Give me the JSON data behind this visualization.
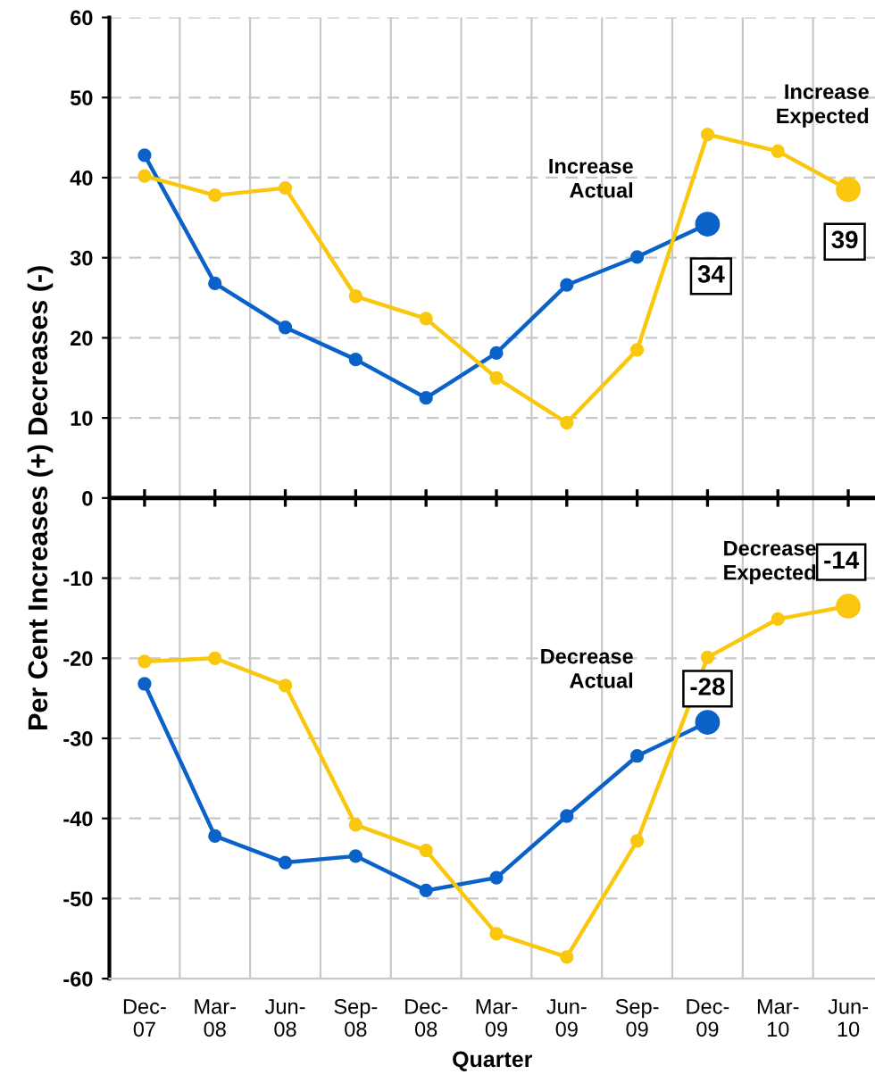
{
  "chart_data": {
    "type": "line",
    "xlabel": "Quarter",
    "ylabel": "Per Cent Increases (+) Decreases (-)",
    "categories": [
      "Dec-\n07",
      "Mar-\n08",
      "Jun-\n08",
      "Sep-\n08",
      "Dec-\n08",
      "Mar-\n09",
      "Jun-\n09",
      "Sep-\n09",
      "Dec-\n09",
      "Mar-\n10",
      "Jun-\n10"
    ],
    "series": [
      {
        "name": "Increase\nActual",
        "color": "#0a62c9",
        "values": [
          42.8,
          26.8,
          21.3,
          17.3,
          12.5,
          18.1,
          26.6,
          30.1,
          34.2,
          null,
          null
        ],
        "value_labels": [
          null,
          null,
          null,
          null,
          null,
          null,
          null,
          null,
          "34",
          null,
          null
        ]
      },
      {
        "name": "Increase\nExpected",
        "color": "#f9c80e",
        "values": [
          40.2,
          37.8,
          38.7,
          25.2,
          22.4,
          15.0,
          9.4,
          18.5,
          45.4,
          43.3,
          38.5
        ],
        "value_labels": [
          null,
          null,
          null,
          null,
          null,
          null,
          null,
          null,
          null,
          null,
          "39"
        ]
      },
      {
        "name": "Decrease\nActual",
        "color": "#0a62c9",
        "values": [
          -23.2,
          -42.2,
          -45.5,
          -44.7,
          -49.0,
          -47.4,
          -39.7,
          -32.2,
          -28.0,
          null,
          null
        ],
        "value_labels": [
          null,
          null,
          null,
          null,
          null,
          null,
          null,
          null,
          "-28",
          null,
          null
        ]
      },
      {
        "name": "Decrease\nExpected",
        "color": "#f9c80e",
        "values": [
          -20.4,
          -20.0,
          -23.4,
          -40.8,
          -44.0,
          -54.4,
          -57.3,
          -42.8,
          -19.9,
          -15.1,
          -13.5
        ],
        "value_labels": [
          null,
          null,
          null,
          null,
          null,
          null,
          null,
          null,
          null,
          null,
          "-14"
        ]
      }
    ],
    "ylim": [
      -60,
      60
    ],
    "yticks": [
      -60,
      -50,
      -40,
      -30,
      -20,
      -10,
      0,
      10,
      20,
      30,
      40,
      50,
      60
    ],
    "ref_lines": [
      {
        "axis": "y",
        "value": 0,
        "color": "#000000"
      }
    ],
    "grid": "y",
    "marker": "circle",
    "line_style": "solid",
    "legend": false
  }
}
